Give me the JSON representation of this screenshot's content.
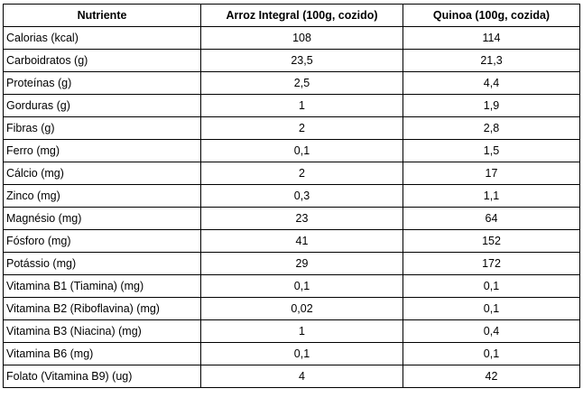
{
  "table": {
    "headers": [
      "Nutriente",
      "Arroz Integral (100g, cozido)",
      "Quinoa (100g, cozida)"
    ],
    "rows": [
      [
        "Calorias (kcal)",
        "108",
        "114"
      ],
      [
        "Carboidratos (g)",
        "23,5",
        "21,3"
      ],
      [
        "Proteínas (g)",
        "2,5",
        "4,4"
      ],
      [
        "Gorduras (g)",
        "1",
        "1,9"
      ],
      [
        "Fibras (g)",
        "2",
        "2,8"
      ],
      [
        "Ferro (mg)",
        "0,1",
        "1,5"
      ],
      [
        "Cálcio (mg)",
        "2",
        "17"
      ],
      [
        "Zinco (mg)",
        "0,3",
        "1,1"
      ],
      [
        "Magnésio (mg)",
        "23",
        "64"
      ],
      [
        "Fósforo (mg)",
        "41",
        "152"
      ],
      [
        "Potássio (mg)",
        "29",
        "172"
      ],
      [
        "Vitamina B1 (Tiamina) (mg)",
        "0,1",
        "0,1"
      ],
      [
        "Vitamina B2 (Riboflavina) (mg)",
        "0,02",
        "0,1"
      ],
      [
        "Vitamina B3 (Niacina) (mg)",
        "1",
        "0,4"
      ],
      [
        "Vitamina B6 (mg)",
        "0,1",
        "0,1"
      ],
      [
        "Folato (Vitamina B9) (ug)",
        "4",
        "42"
      ]
    ]
  }
}
